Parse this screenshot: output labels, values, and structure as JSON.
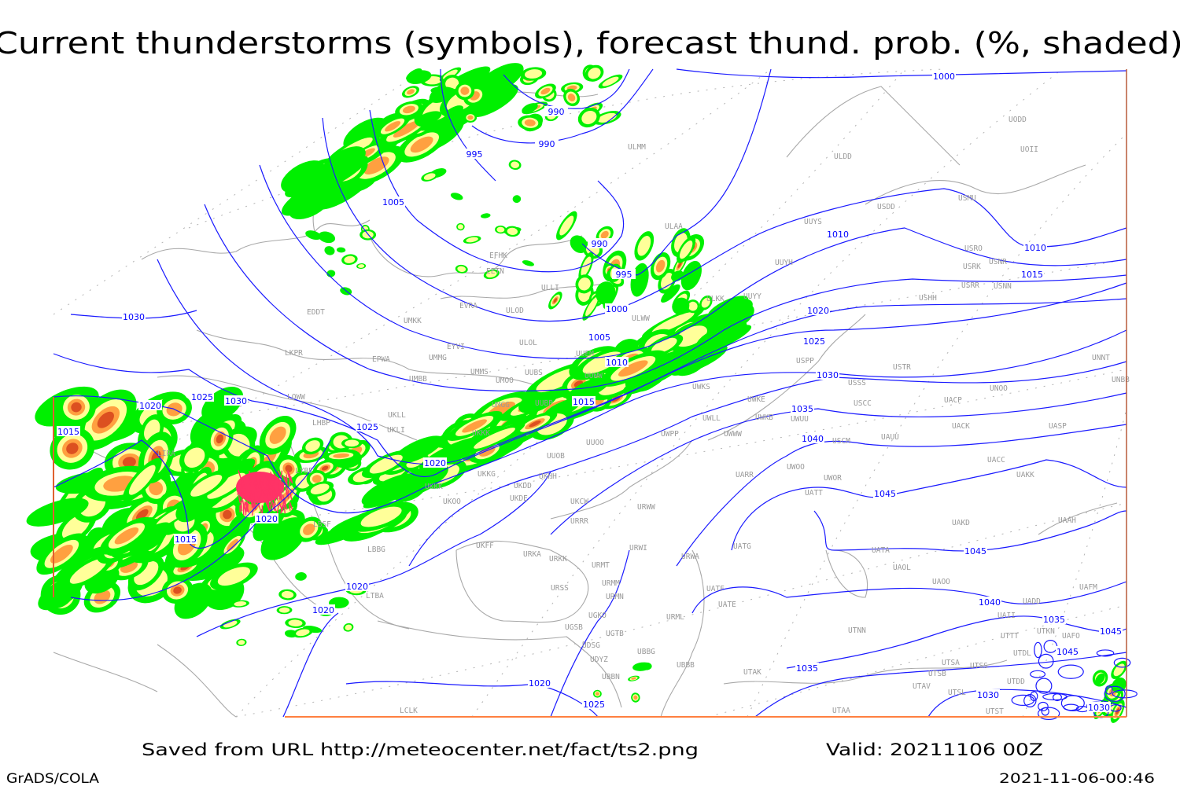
{
  "title": "Current thunderstorms (symbols), forecast thund. prob. (%, shaded)",
  "footer": {
    "source": "Saved from URL http://meteocenter.net/fact/ts2.png",
    "valid": "Valid: 20211106 00Z",
    "software": "GrADS/COLA",
    "timestamp": "2021-11-06-00:46"
  },
  "colors": {
    "isobar": "#1a1aff",
    "borders": "#a8a8a8",
    "prob_low": "#00f000",
    "prob_mid": "#ffff99",
    "prob_high": "#ffa040",
    "prob_max": "#dc5020",
    "thunderstorm_symbols": "#ff3366"
  },
  "isobar_labels": [
    "1000",
    "990",
    "990",
    "995",
    "1005",
    "1010",
    "1010",
    "1015",
    "990",
    "995",
    "1000",
    "1005",
    "1010",
    "1015",
    "1020",
    "1025",
    "1030",
    "1035",
    "1040",
    "1045",
    "1045",
    "1040",
    "1035",
    "1045",
    "1045",
    "1035",
    "1030",
    "1030",
    "1030",
    "1025",
    "1030",
    "1020",
    "1025",
    "1015",
    "1020",
    "1020",
    "1015",
    "1020",
    "1020",
    "1020",
    "1025"
  ],
  "stations": [
    "ULDD",
    "UODD",
    "UOII",
    "USDD",
    "USMU",
    "ULMM",
    "ULAA",
    "UUYS",
    "USRO",
    "USRK",
    "USNR",
    "USRR",
    "USNN",
    "UUYH",
    "USHH",
    "ULKK",
    "UUYY",
    "ULWW",
    "ULLI",
    "ULOD",
    "EVRA",
    "EFHK",
    "EETN",
    "EDDT",
    "UMKK",
    "ULOL",
    "EYVI",
    "UUEM",
    "UMMG",
    "EPWA",
    "LKPR",
    "UMMS",
    "UUBS",
    "UMOO",
    "UMBB",
    "UUWW",
    "LOWW",
    "UKLL",
    "UKLI",
    "LHBP",
    "UUBP",
    "UMGG",
    "UKKK",
    "UWKS",
    "UWKE",
    "UWLL",
    "UWKB",
    "UWUU",
    "UWPP",
    "UWWW",
    "UUOO",
    "UUOB",
    "USPP",
    "USTR",
    "USSS",
    "UNOO",
    "UNNT",
    "UNBB",
    "USCC",
    "UACP",
    "UACK",
    "UASP",
    "USCM",
    "UAUU",
    "UWOO",
    "UWOR",
    "UACC",
    "UAKK",
    "UATT",
    "UARR",
    "LYBE",
    "UKHH",
    "UKDD",
    "UKKG",
    "UKKK",
    "UKDE",
    "UKOO",
    "UKCW",
    "URWW",
    "UAKD",
    "UAAH",
    "URRR",
    "LBSF",
    "LIRA",
    "UKFF",
    "URKA",
    "URKK",
    "URWI",
    "URWA",
    "UATG",
    "UATA",
    "UAOL",
    "UAOO",
    "URMT",
    "URMM",
    "URSS",
    "URMN",
    "UATF",
    "UATE",
    "LBBG",
    "LTBA",
    "UGKO",
    "URML",
    "UGSB",
    "UGTB",
    "UAFM",
    "UADD",
    "UAII",
    "UDSG",
    "UBBG",
    "UDYZ",
    "UTNN",
    "UTTT",
    "UTKN",
    "UAFO",
    "UTDL",
    "UBBN",
    "UBBB",
    "UTAK",
    "UTSA",
    "UTSS",
    "UTSB",
    "UTDD",
    "UTAV",
    "UTSL",
    "LCLK",
    "UTAA",
    "UTST"
  ]
}
